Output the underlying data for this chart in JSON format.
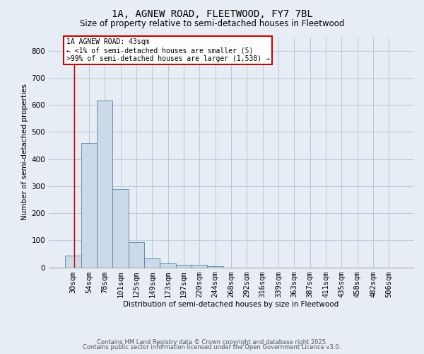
{
  "title": "1A, AGNEW ROAD, FLEETWOOD, FY7 7BL",
  "subtitle": "Size of property relative to semi-detached houses in Fleetwood",
  "xlabel": "Distribution of semi-detached houses by size in Fleetwood",
  "ylabel": "Number of semi-detached properties",
  "categories": [
    "30sqm",
    "54sqm",
    "78sqm",
    "101sqm",
    "125sqm",
    "149sqm",
    "173sqm",
    "197sqm",
    "220sqm",
    "244sqm",
    "268sqm",
    "292sqm",
    "316sqm",
    "339sqm",
    "363sqm",
    "387sqm",
    "411sqm",
    "435sqm",
    "458sqm",
    "482sqm",
    "506sqm"
  ],
  "values": [
    42,
    460,
    617,
    290,
    93,
    33,
    15,
    8,
    8,
    5,
    0,
    0,
    0,
    0,
    0,
    0,
    0,
    0,
    0,
    0,
    0
  ],
  "bar_color": "#ccd9e8",
  "bar_edge_color": "#5580aa",
  "grid_color": "#b8c8d8",
  "background_color": "#e6edf4",
  "vline_color": "#cc0000",
  "annotation_text": "1A AGNEW ROAD: 43sqm\n← <1% of semi-detached houses are smaller (5)\n>99% of semi-detached houses are larger (1,538) →",
  "annotation_box_color": "#ffffff",
  "annotation_box_edge": "#cc0000",
  "footer_line1": "Contains HM Land Registry data © Crown copyright and database right 2025.",
  "footer_line2": "Contains public sector information licensed under the Open Government Licence v3.0.",
  "ylim": [
    0,
    850
  ],
  "yticks": [
    0,
    100,
    200,
    300,
    400,
    500,
    600,
    700,
    800
  ],
  "title_fontsize": 10,
  "subtitle_fontsize": 8.5,
  "axis_fontsize": 7.5,
  "tick_fontsize": 7.5,
  "footer_fontsize": 6.0
}
